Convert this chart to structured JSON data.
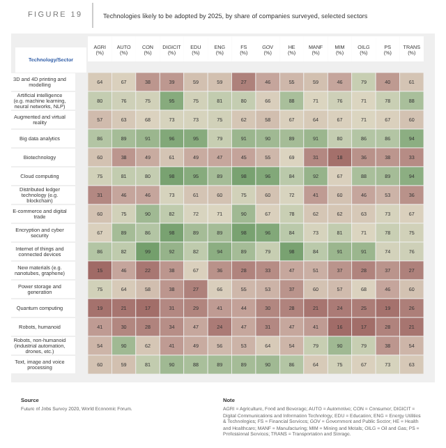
{
  "chart_data": {
    "type": "heatmap",
    "title": "FIGURE 19",
    "subtitle": "Technologies likely to be adopted by 2025, by share of companies surveyed, selected sectors",
    "ylabel": "Technology/Sector",
    "categories": [
      "AGRI (%)",
      "AUTO (%)",
      "CON (%)",
      "DIGICIT (%)",
      "EDU (%)",
      "ENG (%)",
      "FS (%)",
      "GOV (%)",
      "HE (%)",
      "MANF (%)",
      "MIM (%)",
      "OILG (%)",
      "PS (%)",
      "TRANS (%)"
    ],
    "y_categories": [
      "3D and 4D printing and modelling",
      "Artificial intelligence (e.g. machine learning, neural networks, NLP)",
      "Augmented and virtual reality",
      "Big data analytics",
      "Biotechnology",
      "Cloud computing",
      "Distributed ledger technology (e.g. blockchain)",
      "E-commerce and digital trade",
      "Encryption and cyber security",
      "Internet of things and connected devices",
      "New materials (e.g. nanotubes, graphene)",
      "Power storage and generation",
      "Quantum computing",
      "Robots, humanoid",
      "Robots, non-humanoid (industrial automation, drones, etc.)",
      "Text, image and voice processing"
    ],
    "cells": [
      [
        64,
        67,
        38,
        39,
        59,
        59,
        27,
        46,
        55,
        59,
        46,
        79,
        40,
        61
      ],
      [
        80,
        76,
        75,
        95,
        75,
        81,
        80,
        66,
        88,
        71,
        76,
        71,
        78,
        88
      ],
      [
        57,
        63,
        68,
        73,
        73,
        75,
        62,
        58,
        67,
        64,
        67,
        71,
        67,
        60
      ],
      [
        86,
        89,
        91,
        96,
        95,
        79,
        91,
        90,
        89,
        91,
        80,
        86,
        86,
        94
      ],
      [
        60,
        38,
        49,
        61,
        49,
        47,
        45,
        55,
        69,
        31,
        18,
        36,
        38,
        33
      ],
      [
        75,
        81,
        80,
        98,
        95,
        89,
        98,
        96,
        84,
        92,
        67,
        88,
        89,
        94
      ],
      [
        31,
        46,
        46,
        73,
        61,
        60,
        75,
        60,
        72,
        41,
        60,
        46,
        53,
        36
      ],
      [
        60,
        75,
        90,
        82,
        72,
        71,
        90,
        67,
        78,
        62,
        62,
        63,
        73,
        67
      ],
      [
        67,
        89,
        86,
        98,
        89,
        89,
        98,
        96,
        84,
        73,
        81,
        71,
        78,
        75
      ],
      [
        86,
        82,
        99,
        92,
        82,
        94,
        89,
        79,
        98,
        84,
        91,
        91,
        74,
        76
      ],
      [
        15,
        46,
        22,
        38,
        67,
        36,
        28,
        33,
        47,
        51,
        37,
        28,
        37,
        27
      ],
      [
        75,
        64,
        58,
        38,
        27,
        66,
        55,
        53,
        37,
        60,
        57,
        68,
        46,
        60
      ],
      [
        19,
        21,
        17,
        31,
        29,
        41,
        44,
        30,
        28,
        21,
        24,
        25,
        19,
        26
      ],
      [
        41,
        30,
        28,
        34,
        47,
        24,
        47,
        31,
        47,
        41,
        16,
        17,
        28,
        21
      ],
      [
        54,
        90,
        62,
        41,
        49,
        56,
        53,
        64,
        54,
        79,
        90,
        79,
        38,
        54
      ],
      [
        60,
        59,
        81,
        90,
        88,
        89,
        89,
        90,
        86,
        64,
        75,
        67,
        73,
        63
      ]
    ],
    "data_labels": true,
    "annotations": [
      "Source",
      "Future of Jobs Survey 2020, World Economic Forum.",
      "Note",
      "AGRI = Agriculture, Food and Beverage; AUTO = Automotive; CON = Consumer; DIGICIT = Digital Communications and Information Technology; EDU = Education; ENG = Energy Utilities & Technologies; FS = Financial Services; GOV = Government and Public Sector; HE = Health and Healthcare; MANF = Manufacturing; MIM = Mining and Metals; OILG = Oil and Gas; PS = Professional Services; TRANS = Transportation and Storage."
    ]
  }
}
